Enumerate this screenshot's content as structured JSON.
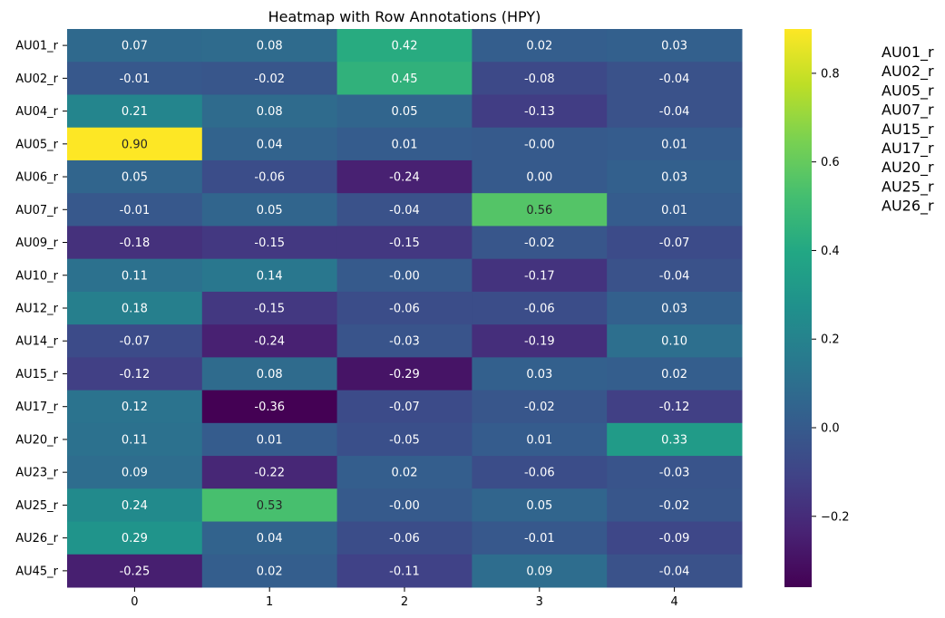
{
  "chart_data": {
    "type": "heatmap",
    "title": "Heatmap with Row Annotations (HPY)",
    "rows": [
      "AU01_r",
      "AU02_r",
      "AU04_r",
      "AU05_r",
      "AU06_r",
      "AU07_r",
      "AU09_r",
      "AU10_r",
      "AU12_r",
      "AU14_r",
      "AU15_r",
      "AU17_r",
      "AU20_r",
      "AU23_r",
      "AU25_r",
      "AU26_r",
      "AU45_r"
    ],
    "columns": [
      "0",
      "1",
      "2",
      "3",
      "4"
    ],
    "values": [
      [
        0.07,
        0.08,
        0.42,
        0.02,
        0.03
      ],
      [
        -0.01,
        -0.02,
        0.45,
        -0.08,
        -0.04
      ],
      [
        0.21,
        0.08,
        0.05,
        -0.13,
        -0.04
      ],
      [
        0.9,
        0.04,
        0.01,
        -0.0,
        0.01
      ],
      [
        0.05,
        -0.06,
        -0.24,
        0.0,
        0.03
      ],
      [
        -0.01,
        0.05,
        -0.04,
        0.56,
        0.01
      ],
      [
        -0.18,
        -0.15,
        -0.15,
        -0.02,
        -0.07
      ],
      [
        0.11,
        0.14,
        -0.0,
        -0.17,
        -0.04
      ],
      [
        0.18,
        -0.15,
        -0.06,
        -0.06,
        0.03
      ],
      [
        -0.07,
        -0.24,
        -0.03,
        -0.19,
        0.1
      ],
      [
        -0.12,
        0.08,
        -0.29,
        0.03,
        0.02
      ],
      [
        0.12,
        -0.36,
        -0.07,
        -0.02,
        -0.12
      ],
      [
        0.11,
        0.01,
        -0.05,
        0.01,
        0.33
      ],
      [
        0.09,
        -0.22,
        0.02,
        -0.06,
        -0.03
      ],
      [
        0.24,
        0.53,
        -0.0,
        0.05,
        -0.02
      ],
      [
        0.29,
        0.04,
        -0.06,
        -0.01,
        -0.09
      ],
      [
        -0.25,
        0.02,
        -0.11,
        0.09,
        -0.04
      ]
    ],
    "cell_labels": [
      [
        "0.07",
        "0.08",
        "0.42",
        "0.02",
        "0.03"
      ],
      [
        "-0.01",
        "-0.02",
        "0.45",
        "-0.08",
        "-0.04"
      ],
      [
        "0.21",
        "0.08",
        "0.05",
        "-0.13",
        "-0.04"
      ],
      [
        "0.90",
        "0.04",
        "0.01",
        "-0.00",
        "0.01"
      ],
      [
        "0.05",
        "-0.06",
        "-0.24",
        "0.00",
        "0.03"
      ],
      [
        "-0.01",
        "0.05",
        "-0.04",
        "0.56",
        "0.01"
      ],
      [
        "-0.18",
        "-0.15",
        "-0.15",
        "-0.02",
        "-0.07"
      ],
      [
        "0.11",
        "0.14",
        "-0.00",
        "-0.17",
        "-0.04"
      ],
      [
        "0.18",
        "-0.15",
        "-0.06",
        "-0.06",
        "0.03"
      ],
      [
        "-0.07",
        "-0.24",
        "-0.03",
        "-0.19",
        "0.10"
      ],
      [
        "-0.12",
        "0.08",
        "-0.29",
        "0.03",
        "0.02"
      ],
      [
        "0.12",
        "-0.36",
        "-0.07",
        "-0.02",
        "-0.12"
      ],
      [
        "0.11",
        "0.01",
        "-0.05",
        "0.01",
        "0.33"
      ],
      [
        "0.09",
        "-0.22",
        "0.02",
        "-0.06",
        "-0.03"
      ],
      [
        "0.24",
        "0.53",
        "-0.00",
        "0.05",
        "-0.02"
      ],
      [
        "0.29",
        "0.04",
        "-0.06",
        "-0.01",
        "-0.09"
      ],
      [
        "-0.25",
        "0.02",
        "-0.11",
        "0.09",
        "-0.04"
      ]
    ],
    "colormap": "viridis",
    "vmin": -0.36,
    "vmax": 0.9,
    "colorbar": {
      "ticks": [
        -0.2,
        0.0,
        0.2,
        0.4,
        0.6,
        0.8
      ],
      "tick_labels": [
        "−0.2",
        "0.0",
        "0.2",
        "0.4",
        "0.6",
        "0.8"
      ]
    },
    "row_annotations": [
      "AU01_r",
      "AU02_r",
      "AU05_r",
      "AU07_r",
      "AU15_r",
      "AU17_r",
      "AU20_r",
      "AU25_r",
      "AU26_r"
    ],
    "row_annotation_placement": "right",
    "grid": false,
    "xlabel": "",
    "ylabel": ""
  }
}
